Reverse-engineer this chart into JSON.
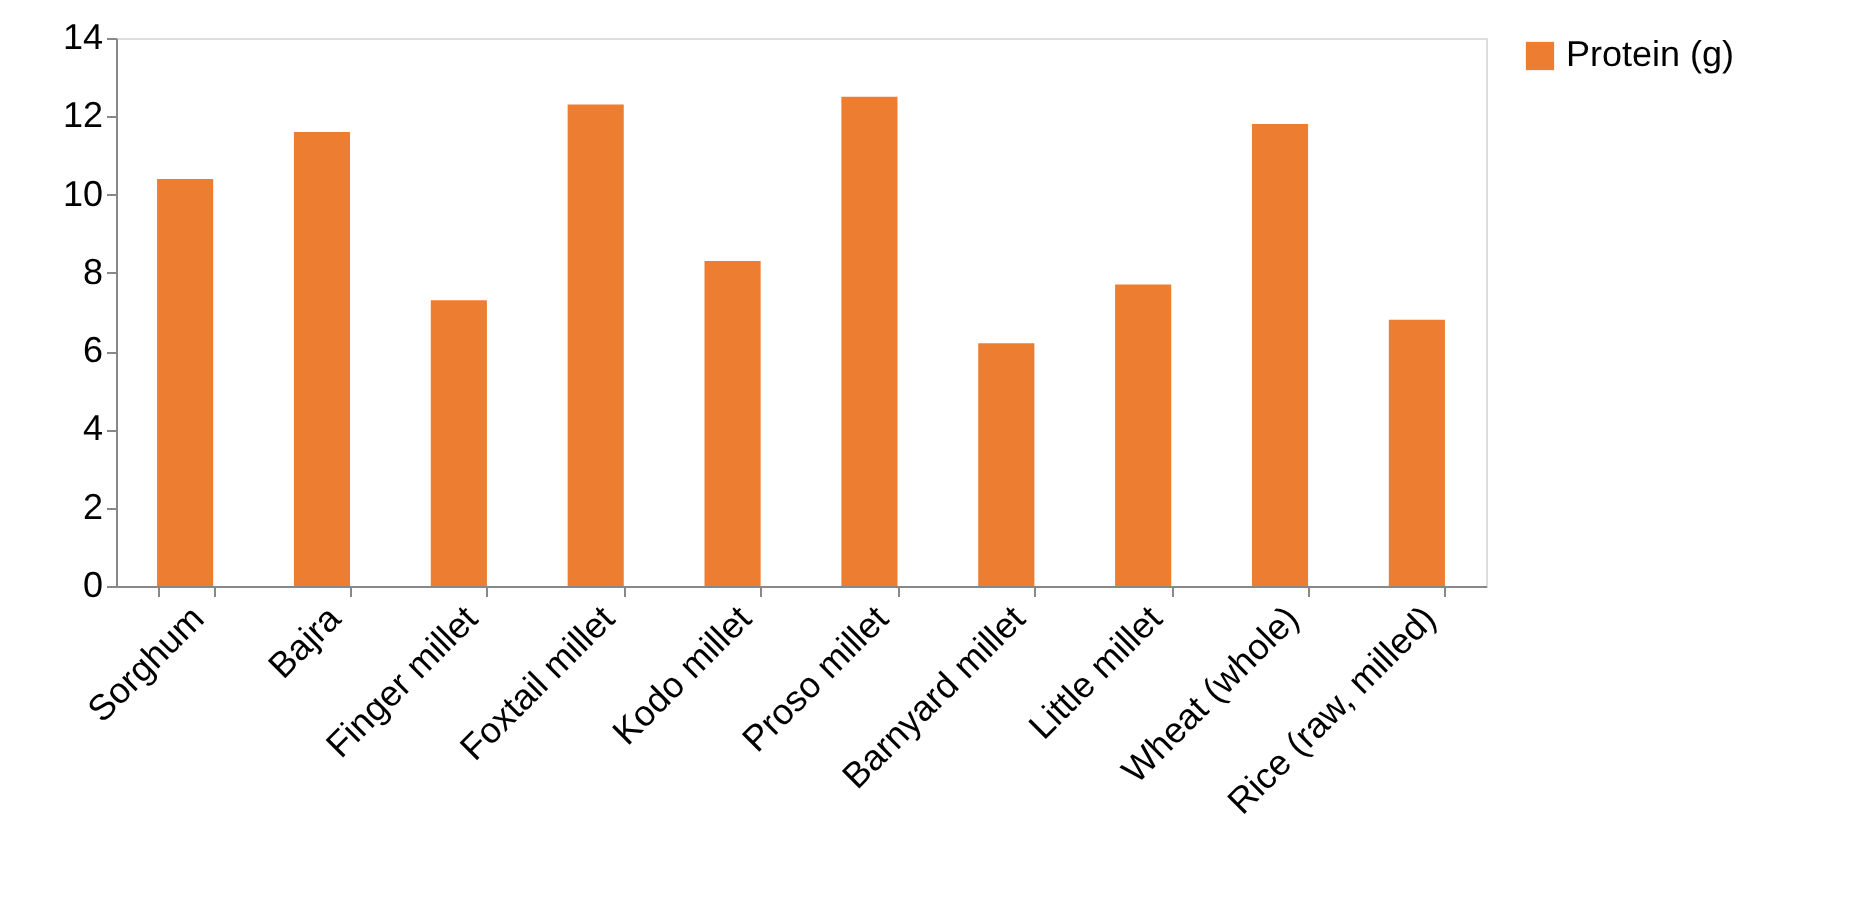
{
  "chart_data": {
    "type": "bar",
    "categories": [
      "Sorghum",
      "Bajra",
      "Finger millet",
      "Foxtail millet",
      "Kodo millet",
      "Proso millet",
      "Barnyard millet",
      "Little millet",
      "Wheat (whole)",
      "Rice (raw, milled)"
    ],
    "series": [
      {
        "name": "Protein (g)",
        "color": "#ed7d31",
        "values": [
          10.4,
          11.6,
          7.3,
          12.3,
          8.3,
          12.5,
          6.2,
          7.7,
          11.8,
          6.8
        ]
      }
    ],
    "ylim": [
      0,
      14
    ],
    "yticks": [
      0,
      2,
      4,
      6,
      8,
      10,
      12,
      14
    ],
    "grid": false,
    "legend": "right"
  }
}
